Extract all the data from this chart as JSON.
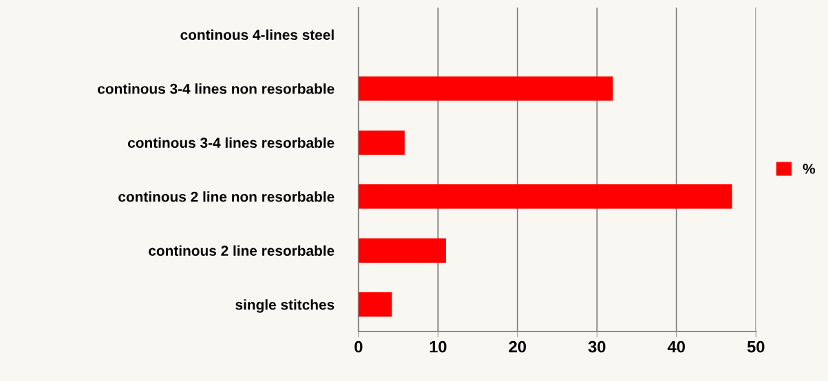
{
  "chart_data": {
    "type": "bar",
    "orientation": "horizontal",
    "categories": [
      "continous 4-lines steel",
      "continous 3-4 lines non resorbable",
      "continous 3-4 lines resorbable",
      "continous 2 line non resorbable",
      "continous 2 line resorbable",
      "single stitches"
    ],
    "series": [
      {
        "name": "%",
        "color": "#ff0000",
        "values": [
          0,
          32,
          5.8,
          47,
          11,
          4.2
        ]
      }
    ],
    "xlim": [
      0,
      50
    ],
    "xticks": [
      0,
      10,
      20,
      30,
      40,
      50
    ],
    "grid": "x",
    "legend": "right"
  }
}
